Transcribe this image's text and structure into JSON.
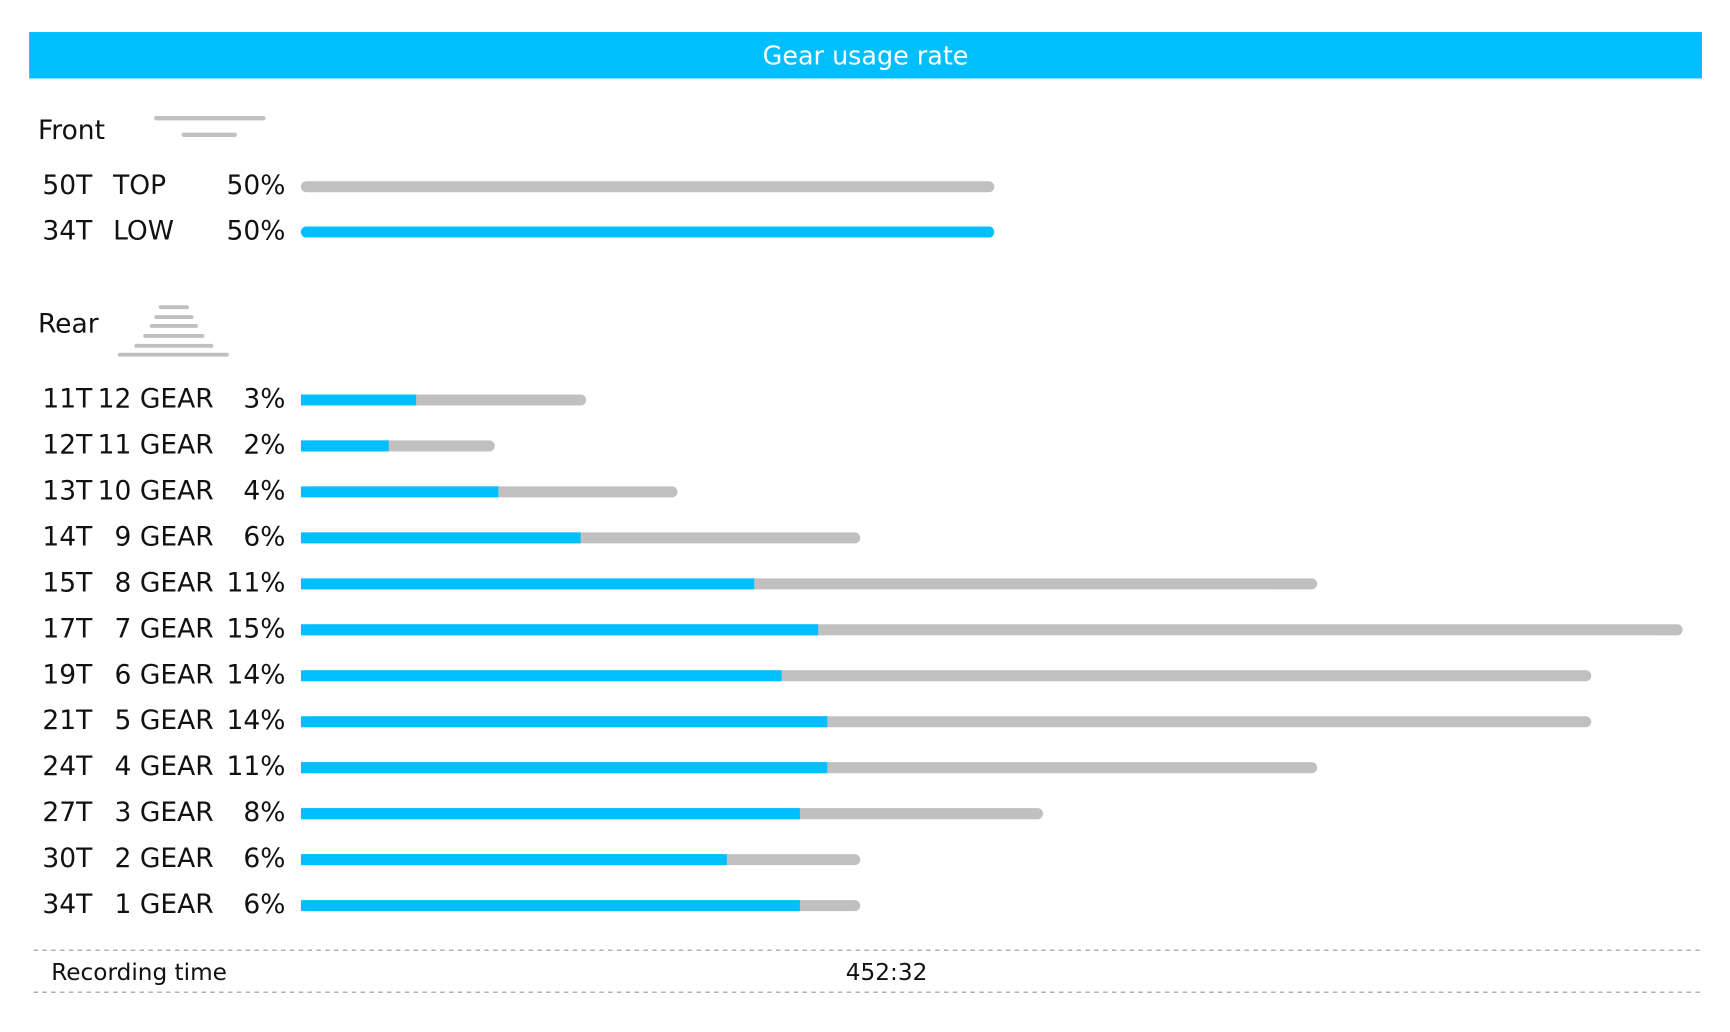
{
  "header": {
    "title": "Gear usage rate"
  },
  "front": {
    "title": "Front",
    "rows": [
      {
        "teeth": "50T",
        "name": "TOP",
        "value": 50,
        "label": "50%",
        "low": 0
      },
      {
        "teeth": "34T",
        "name": "LOW",
        "value": 50,
        "label": "50%",
        "low": 50
      }
    ]
  },
  "rear": {
    "title": "Rear",
    "rows": [
      {
        "teeth": "11T",
        "gear": "12 GEAR",
        "value": 3,
        "label": "3%",
        "low": 1.2
      },
      {
        "teeth": "12T",
        "gear": "11 GEAR",
        "value": 2,
        "label": "2%",
        "low": 0.9
      },
      {
        "teeth": "13T",
        "gear": "10 GEAR",
        "value": 4,
        "label": "4%",
        "low": 2.1
      },
      {
        "teeth": "14T",
        "gear": "9 GEAR",
        "value": 6,
        "label": "6%",
        "low": 3.0
      },
      {
        "teeth": "15T",
        "gear": "8 GEAR",
        "value": 11,
        "label": "11%",
        "low": 4.9
      },
      {
        "teeth": "17T",
        "gear": "7 GEAR",
        "value": 15,
        "label": "15%",
        "low": 5.6
      },
      {
        "teeth": "19T",
        "gear": "6 GEAR",
        "value": 14,
        "label": "14%",
        "low": 5.2
      },
      {
        "teeth": "21T",
        "gear": "5 GEAR",
        "value": 14,
        "label": "14%",
        "low": 5.7
      },
      {
        "teeth": "24T",
        "gear": "4 GEAR",
        "value": 11,
        "label": "11%",
        "low": 5.7
      },
      {
        "teeth": "27T",
        "gear": "3 GEAR",
        "value": 8,
        "label": "8%",
        "low": 5.4
      },
      {
        "teeth": "30T",
        "gear": "2 GEAR",
        "value": 6,
        "label": "6%",
        "low": 4.6
      },
      {
        "teeth": "34T",
        "gear": "1 GEAR",
        "value": 6,
        "label": "6%",
        "low": 5.4
      }
    ]
  },
  "footer": {
    "label": "Recording time",
    "value": "452:32"
  }
}
